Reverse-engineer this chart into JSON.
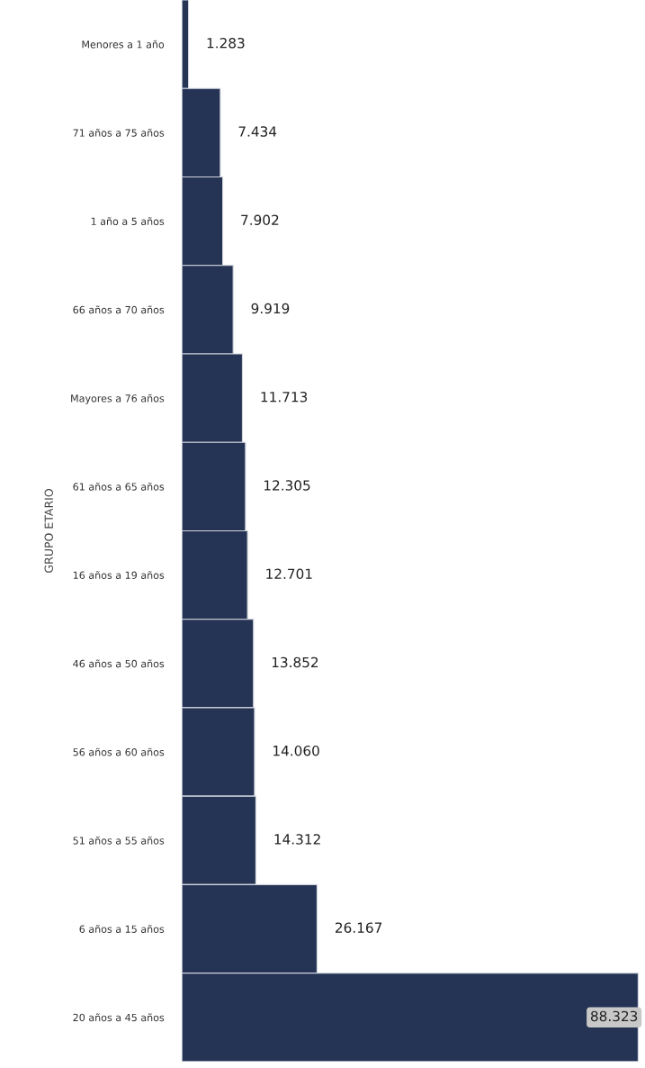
{
  "chart_data": {
    "type": "bar",
    "orientation": "horizontal",
    "ylabel": "GRUPO ETARIO",
    "categories": [
      "Menores a 1 año",
      "71 años a 75 años",
      "1 año a 5 años",
      "66 años a 70 años",
      "Mayores a 76 años",
      "61 años a 65 años",
      "16 años a 19 años",
      "46 años a 50 años",
      "56 años a 60 años",
      "51 años a 55 años",
      "6 años a 15 años",
      "20 años a 45 años"
    ],
    "values": [
      1283,
      7434,
      7902,
      9919,
      11713,
      12305,
      12701,
      13852,
      14060,
      14312,
      26167,
      88323
    ],
    "value_labels": [
      "1.283",
      "7.434",
      "7.902",
      "9.919",
      "11.713",
      "12.305",
      "12.701",
      "13.852",
      "14.060",
      "14.312",
      "26.167",
      "88.323"
    ],
    "color": "#253355",
    "grid": false,
    "legend": false,
    "tick_labels": "y"
  }
}
